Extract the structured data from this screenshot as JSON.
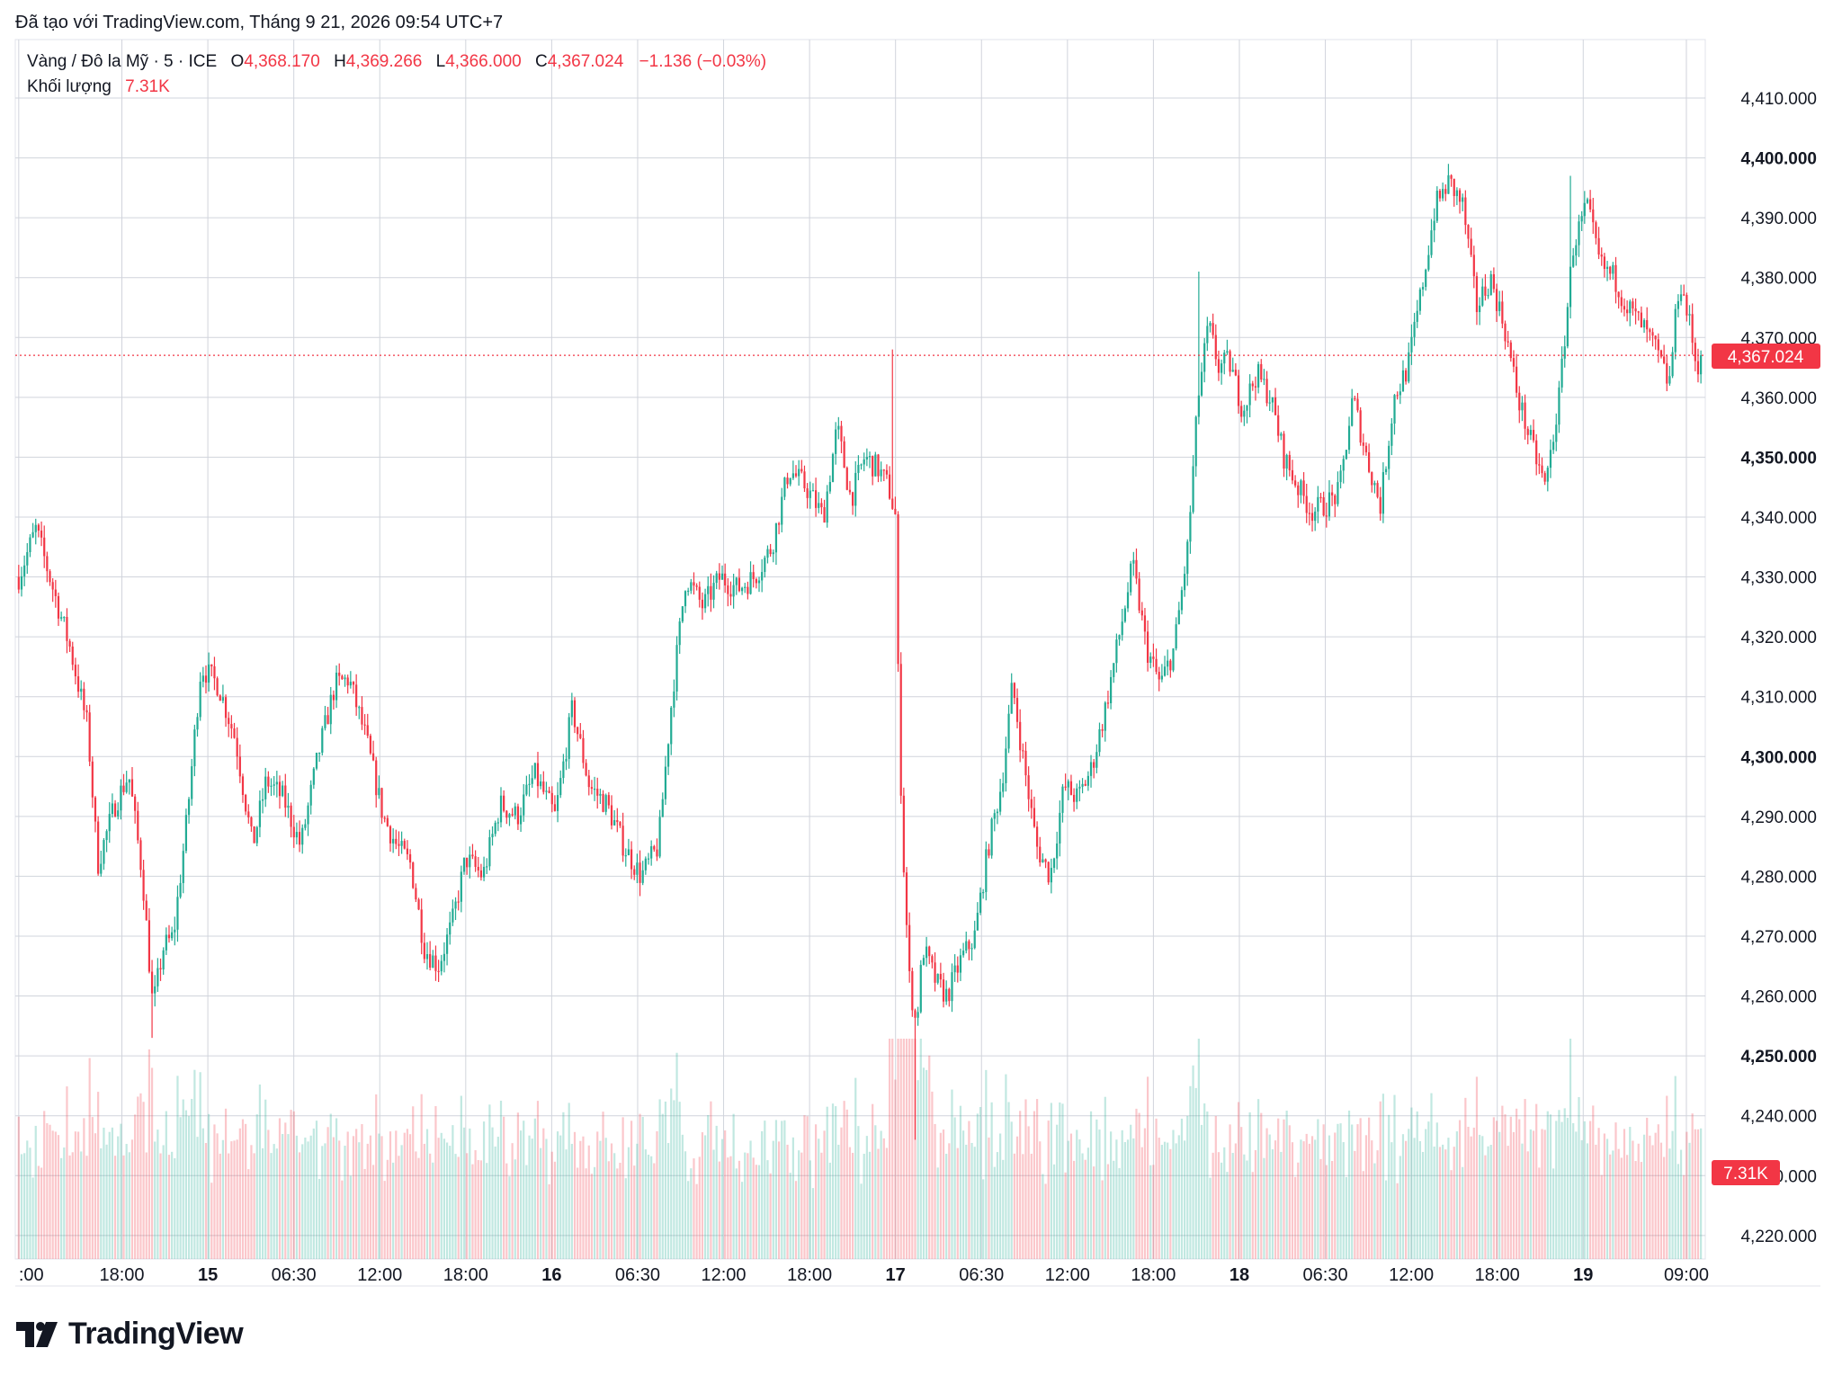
{
  "header": {
    "created_with": "Đã tạo với TradingView.com, Tháng 9 21, 2026 09:54 UTC+7"
  },
  "legend": {
    "symbol": "Vàng / Đô la Mỹ · 5 · ICE",
    "o_label": "O",
    "o_value": "4,368.170",
    "h_label": "H",
    "h_value": "4,369.266",
    "l_label": "L",
    "l_value": "4,366.000",
    "c_label": "C",
    "c_value": "4,367.024",
    "change": "−1.136 (−0.03%)",
    "volume_label": "Khối lượng",
    "volume_value": "7.31K"
  },
  "badges": {
    "last_price": "4,367.024",
    "last_volume": "7.31K"
  },
  "logo": {
    "text": "TradingView"
  },
  "colors": {
    "up": "#22ab94",
    "down": "#f23645",
    "grid": "#d1d4dc"
  },
  "chart_data": {
    "type": "candlestick",
    "title": "Vàng / Đô la Mỹ · 5 · ICE",
    "ylim": [
      4217,
      4419
    ],
    "y_ticks": [
      {
        "value": 4410,
        "label": "4,410.000",
        "bold": false
      },
      {
        "value": 4400,
        "label": "4,400.000",
        "bold": true
      },
      {
        "value": 4390,
        "label": "4,390.000",
        "bold": false
      },
      {
        "value": 4380,
        "label": "4,380.000",
        "bold": false
      },
      {
        "value": 4370,
        "label": "4,370.000",
        "bold": false
      },
      {
        "value": 4360,
        "label": "4,360.000",
        "bold": false
      },
      {
        "value": 4350,
        "label": "4,350.000",
        "bold": true
      },
      {
        "value": 4340,
        "label": "4,340.000",
        "bold": false
      },
      {
        "value": 4330,
        "label": "4,330.000",
        "bold": false
      },
      {
        "value": 4320,
        "label": "4,320.000",
        "bold": false
      },
      {
        "value": 4310,
        "label": "4,310.000",
        "bold": false
      },
      {
        "value": 4300,
        "label": "4,300.000",
        "bold": true
      },
      {
        "value": 4290,
        "label": "4,290.000",
        "bold": false
      },
      {
        "value": 4280,
        "label": "4,280.000",
        "bold": false
      },
      {
        "value": 4270,
        "label": "4,270.000",
        "bold": false
      },
      {
        "value": 4260,
        "label": "4,260.000",
        "bold": false
      },
      {
        "value": 4250,
        "label": "4,250.000",
        "bold": true
      },
      {
        "value": 4240,
        "label": "4,240.000",
        "bold": false
      },
      {
        "value": 4230,
        "label": "4,230.000",
        "bold": false
      },
      {
        "value": 4220,
        "label": "4,220.000",
        "bold": false
      }
    ],
    "x_ticks": [
      {
        "t": 0,
        "label": ":00",
        "bold": false
      },
      {
        "t": 3,
        "label": "18:00",
        "bold": false
      },
      {
        "t": 5.5,
        "label": "15",
        "bold": true
      },
      {
        "t": 8,
        "label": "06:30",
        "bold": false
      },
      {
        "t": 10.5,
        "label": "12:00",
        "bold": false
      },
      {
        "t": 13,
        "label": "18:00",
        "bold": false
      },
      {
        "t": 15.5,
        "label": "16",
        "bold": true
      },
      {
        "t": 18,
        "label": "06:30",
        "bold": false
      },
      {
        "t": 20.5,
        "label": "12:00",
        "bold": false
      },
      {
        "t": 23,
        "label": "18:00",
        "bold": false
      },
      {
        "t": 25.5,
        "label": "17",
        "bold": true
      },
      {
        "t": 28,
        "label": "06:30",
        "bold": false
      },
      {
        "t": 30.5,
        "label": "12:00",
        "bold": false
      },
      {
        "t": 33,
        "label": "18:00",
        "bold": false
      },
      {
        "t": 35.5,
        "label": "18",
        "bold": true
      },
      {
        "t": 38,
        "label": "06:30",
        "bold": false
      },
      {
        "t": 40.5,
        "label": "12:00",
        "bold": false
      },
      {
        "t": 43,
        "label": "18:00",
        "bold": false
      },
      {
        "t": 45.5,
        "label": "19",
        "bold": true
      },
      {
        "t": 48.5,
        "label": "09:00",
        "bold": false
      }
    ],
    "x_range": [
      -0.1,
      49.05
    ],
    "price_path": [
      [
        0,
        4330
      ],
      [
        0.5,
        4338
      ],
      [
        1,
        4328
      ],
      [
        1.5,
        4318
      ],
      [
        2,
        4305
      ],
      [
        2.3,
        4282
      ],
      [
        2.8,
        4292
      ],
      [
        3.2,
        4297
      ],
      [
        3.6,
        4280
      ],
      [
        3.9,
        4258
      ],
      [
        4.2,
        4268
      ],
      [
        4.5,
        4270
      ],
      [
        4.9,
        4290
      ],
      [
        5.3,
        4315
      ],
      [
        5.8,
        4312
      ],
      [
        6.3,
        4303
      ],
      [
        6.8,
        4285
      ],
      [
        7.2,
        4296
      ],
      [
        7.7,
        4293
      ],
      [
        8.2,
        4285
      ],
      [
        8.7,
        4300
      ],
      [
        9.2,
        4312
      ],
      [
        9.6,
        4313
      ],
      [
        10.1,
        4303
      ],
      [
        10.6,
        4290
      ],
      [
        11.0,
        4285
      ],
      [
        11.4,
        4282
      ],
      [
        11.8,
        4268
      ],
      [
        12.2,
        4265
      ],
      [
        12.6,
        4272
      ],
      [
        13.0,
        4283
      ],
      [
        13.5,
        4280
      ],
      [
        14.0,
        4292
      ],
      [
        14.5,
        4290
      ],
      [
        15.0,
        4297
      ],
      [
        15.6,
        4290
      ],
      [
        16.1,
        4308
      ],
      [
        16.6,
        4295
      ],
      [
        17.1,
        4292
      ],
      [
        17.6,
        4285
      ],
      [
        18.1,
        4280
      ],
      [
        18.6,
        4285
      ],
      [
        19.0,
        4310
      ],
      [
        19.4,
        4330
      ],
      [
        19.9,
        4325
      ],
      [
        20.4,
        4330
      ],
      [
        20.9,
        4328
      ],
      [
        21.4,
        4330
      ],
      [
        21.9,
        4335
      ],
      [
        22.4,
        4348
      ],
      [
        22.9,
        4345
      ],
      [
        23.4,
        4340
      ],
      [
        23.8,
        4355
      ],
      [
        24.2,
        4343
      ],
      [
        24.6,
        4350
      ],
      [
        25.0,
        4348
      ],
      [
        25.3,
        4345
      ],
      [
        25.5,
        4340
      ],
      [
        25.6,
        4305
      ],
      [
        25.75,
        4280
      ],
      [
        25.9,
        4263
      ],
      [
        26.1,
        4255
      ],
      [
        26.3,
        4268
      ],
      [
        26.7,
        4262
      ],
      [
        27.0,
        4260
      ],
      [
        27.4,
        4266
      ],
      [
        27.8,
        4270
      ],
      [
        28.2,
        4285
      ],
      [
        28.6,
        4296
      ],
      [
        28.9,
        4312
      ],
      [
        29.2,
        4300
      ],
      [
        29.6,
        4285
      ],
      [
        30.0,
        4280
      ],
      [
        30.4,
        4295
      ],
      [
        30.8,
        4293
      ],
      [
        31.2,
        4298
      ],
      [
        31.6,
        4308
      ],
      [
        32.0,
        4320
      ],
      [
        32.4,
        4332
      ],
      [
        32.8,
        4318
      ],
      [
        33.2,
        4312
      ],
      [
        33.6,
        4318
      ],
      [
        34.0,
        4335
      ],
      [
        34.3,
        4360
      ],
      [
        34.6,
        4372
      ],
      [
        34.9,
        4365
      ],
      [
        35.2,
        4366
      ],
      [
        35.6,
        4358
      ],
      [
        36.0,
        4364
      ],
      [
        36.4,
        4360
      ],
      [
        36.8,
        4350
      ],
      [
        37.2,
        4345
      ],
      [
        37.6,
        4341
      ],
      [
        38.0,
        4342
      ],
      [
        38.4,
        4344
      ],
      [
        38.8,
        4360
      ],
      [
        39.2,
        4350
      ],
      [
        39.6,
        4342
      ],
      [
        40.0,
        4360
      ],
      [
        40.4,
        4365
      ],
      [
        40.8,
        4378
      ],
      [
        41.2,
        4392
      ],
      [
        41.6,
        4396
      ],
      [
        42.0,
        4392
      ],
      [
        42.4,
        4375
      ],
      [
        42.8,
        4380
      ],
      [
        43.2,
        4372
      ],
      [
        43.6,
        4360
      ],
      [
        44.0,
        4352
      ],
      [
        44.4,
        4345
      ],
      [
        44.8,
        4360
      ],
      [
        45.2,
        4385
      ],
      [
        45.6,
        4392
      ],
      [
        46.0,
        4382
      ],
      [
        46.4,
        4380
      ],
      [
        46.8,
        4375
      ],
      [
        47.2,
        4372
      ],
      [
        47.6,
        4368
      ],
      [
        48.0,
        4362
      ],
      [
        48.3,
        4380
      ],
      [
        48.6,
        4372
      ],
      [
        48.8,
        4365
      ],
      [
        48.95,
        4367.024
      ]
    ],
    "spikes": [
      {
        "t": 3.9,
        "value": 4253
      },
      {
        "t": 25.45,
        "value": 4368
      },
      {
        "t": 26.1,
        "value": 4236
      },
      {
        "t": 34.3,
        "value": 4381
      },
      {
        "t": 41.6,
        "value": 4399
      },
      {
        "t": 45.1,
        "value": 4397
      }
    ],
    "last_price": 4367.024,
    "volume": {
      "label": "Khối lượng",
      "last": "7.31K"
    }
  }
}
